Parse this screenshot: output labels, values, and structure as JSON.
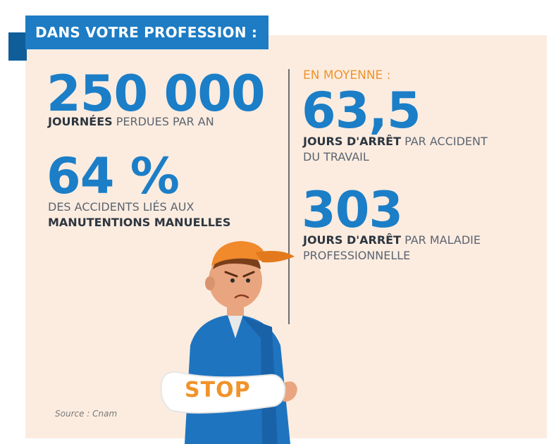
{
  "banner": {
    "title": "DANS VOTRE PROFESSION :"
  },
  "left": {
    "stat1": {
      "value": "250 000",
      "bold": "JOURNÉES",
      "rest": " PERDUES PAR AN"
    },
    "stat2": {
      "value": "64 %",
      "line1": "DES ACCIDENTS LIÉS AUX",
      "bold": "MANUTENTIONS MANUELLES"
    }
  },
  "right": {
    "kicker": "EN MOYENNE :",
    "stat1": {
      "value": "63,5",
      "bold": "JOURS D'ARRÊT",
      "rest": " PAR ACCIDENT",
      "line2": "DU TRAVAIL"
    },
    "stat2": {
      "value": "303",
      "bold": "JOURS D'ARRÊT",
      "rest": " PAR MALADIE",
      "line2": "PROFESSIONNELLE"
    }
  },
  "illustration": {
    "cast_label": "STOP"
  },
  "source": "Source : Cnam",
  "colors": {
    "accent_blue": "#1b7ec7",
    "banner_blue": "#1d7cc4",
    "orange": "#f0932b",
    "panel": "#fcece0"
  },
  "icons": [
    "injured-worker-illustration"
  ]
}
